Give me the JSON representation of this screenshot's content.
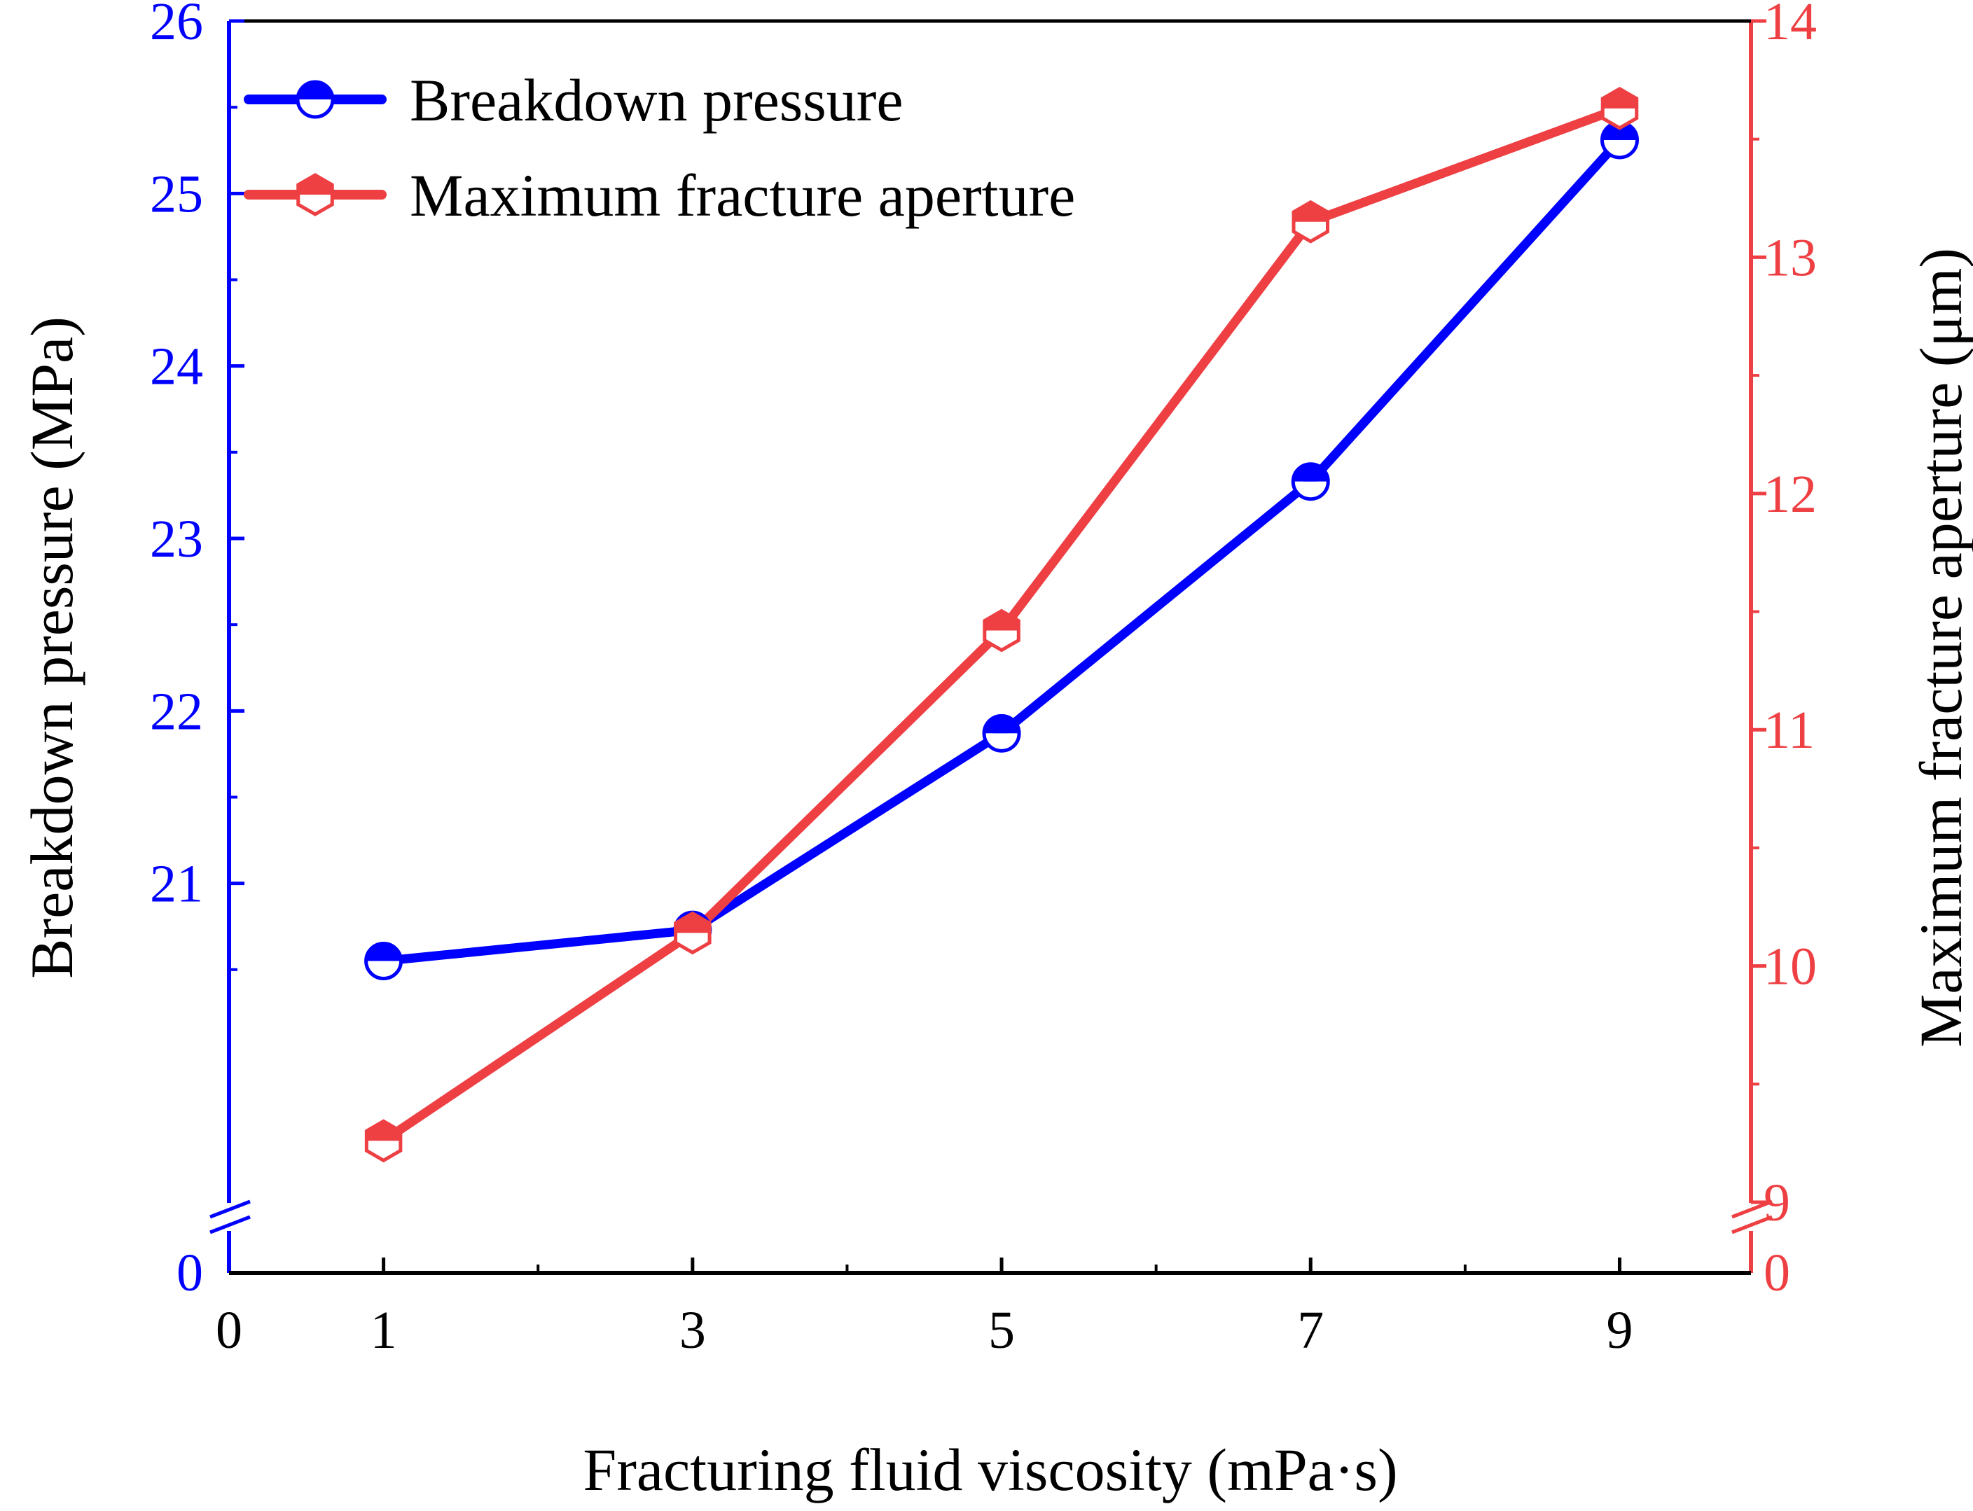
{
  "chart_data": {
    "type": "line",
    "title": "",
    "xlabel": "Fracturing fluid viscosity (mPa·s)",
    "ylabel_left": "Breakdown pressure (MPa)",
    "ylabel_right": "Maximum fracture aperture (μm)",
    "x": [
      1,
      3,
      5,
      7,
      9
    ],
    "x_ticks": [
      "0",
      "1",
      "3",
      "5",
      "7",
      "9"
    ],
    "xlim": [
      0,
      9.85
    ],
    "y_left_ticks": [
      "0",
      "21",
      "22",
      "23",
      "24",
      "25",
      "26"
    ],
    "y_left_range": [
      20.0,
      26.0
    ],
    "y_right_ticks": [
      "0",
      "9",
      "10",
      "11",
      "12",
      "13",
      "14"
    ],
    "y_right_range": [
      8.6,
      14.0
    ],
    "axis_break": true,
    "legend_position": "top-left",
    "series": [
      {
        "name": "Breakdown pressure",
        "axis": "left",
        "color": "#0000ff",
        "marker": "half-filled-circle",
        "values": [
          20.55,
          20.73,
          21.87,
          23.33,
          25.31
        ]
      },
      {
        "name": "Maximum fracture aperture",
        "axis": "right",
        "color": "#ee3f43",
        "marker": "half-filled-hexagon",
        "values": [
          9.26,
          10.14,
          11.42,
          13.15,
          13.63
        ]
      }
    ]
  }
}
